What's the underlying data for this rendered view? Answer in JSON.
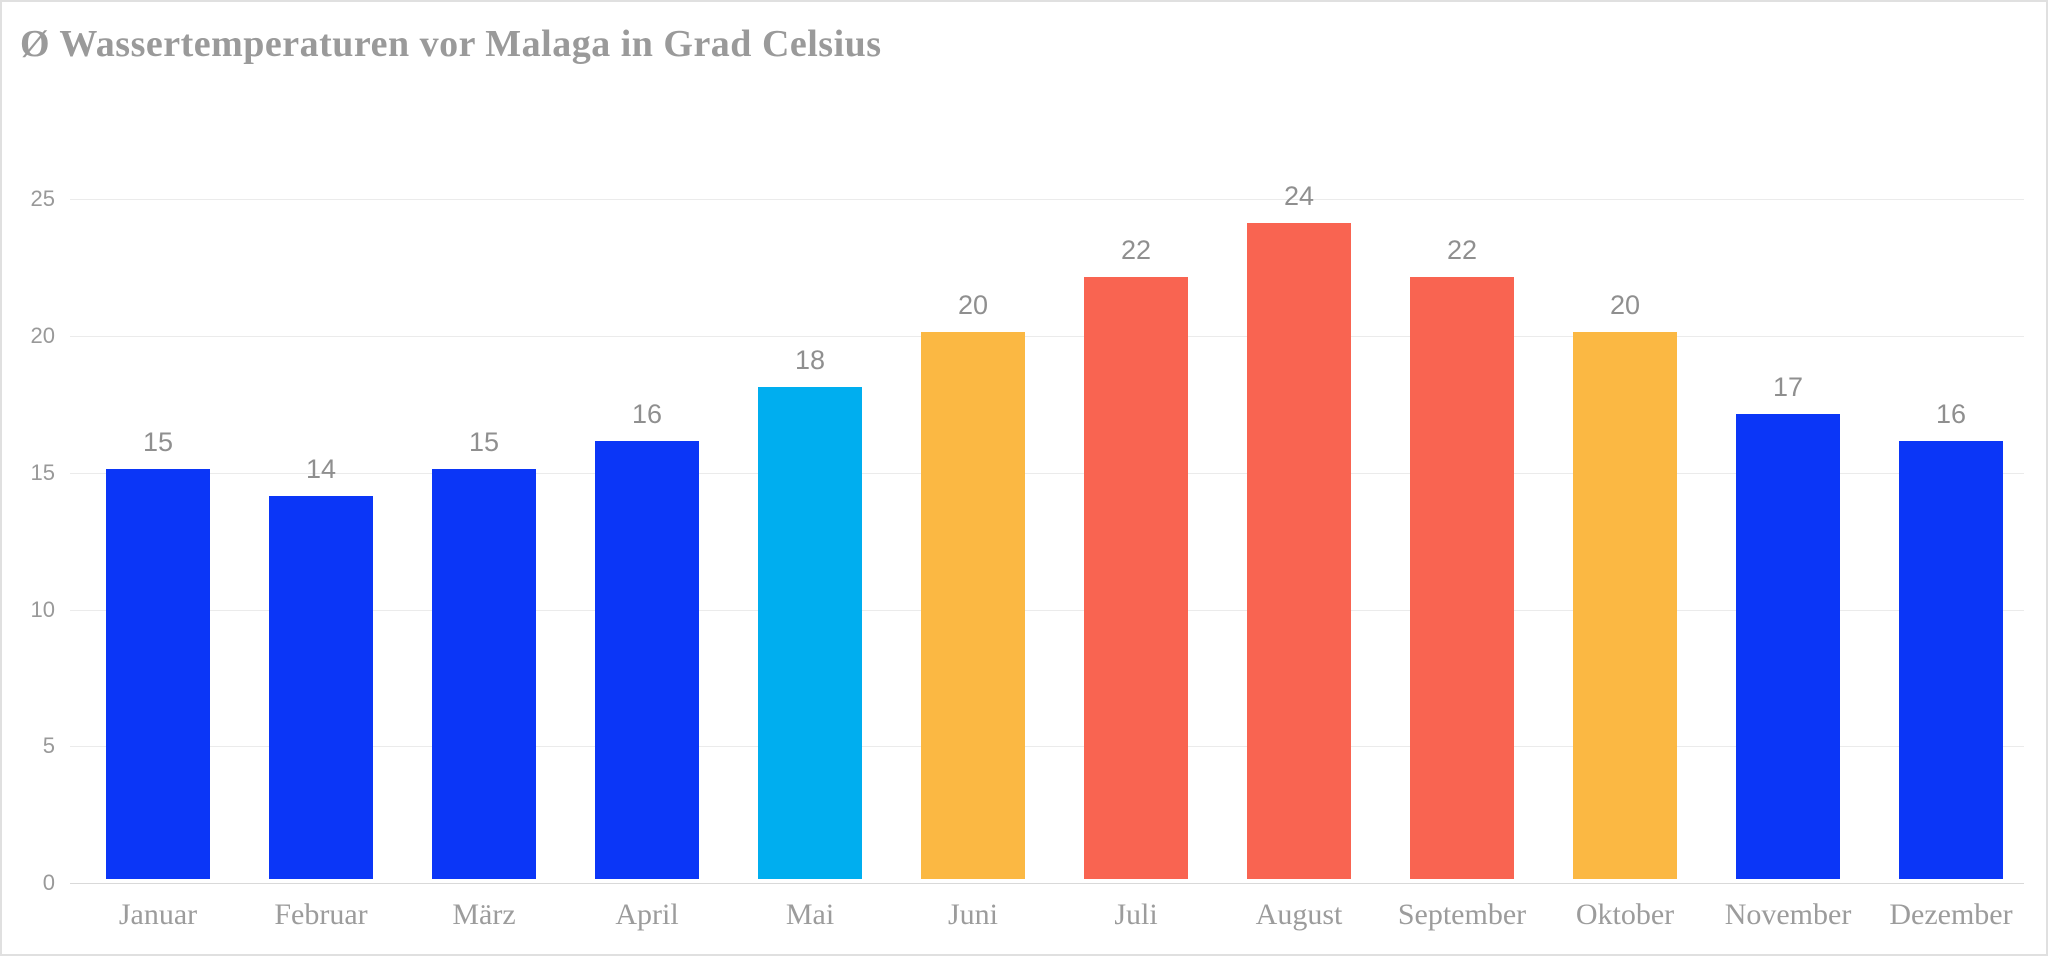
{
  "title": "Ø Wassertemperaturen vor Malaga in Grad Celsius",
  "chart_data": {
    "type": "bar",
    "title": "Ø Wassertemperaturen vor Malaga in Grad Celsius",
    "categories": [
      "Januar",
      "Februar",
      "März",
      "April",
      "Mai",
      "Juni",
      "Juli",
      "August",
      "September",
      "Oktober",
      "November",
      "Dezember"
    ],
    "values": [
      15,
      14,
      15,
      16,
      18,
      20,
      22,
      24,
      22,
      20,
      17,
      16
    ],
    "bar_color_keys": [
      "blue",
      "blue",
      "blue",
      "blue",
      "cyan",
      "orange",
      "red",
      "red",
      "red",
      "orange",
      "blue",
      "blue"
    ],
    "xlabel": "",
    "ylabel": "",
    "ylim": [
      0,
      25
    ],
    "yticks": [
      0,
      5,
      10,
      15,
      20,
      25
    ],
    "grid": true,
    "legend": "none",
    "value_labels_shown": true
  },
  "colors": {
    "blue": "#0b36f7",
    "cyan": "#00aeef",
    "orange": "#fbb843",
    "red": "#f96451",
    "gridline": "#ebebeb",
    "baseline": "#d9d9d9",
    "title_text": "#9a9a9a",
    "tick_text": "#999999",
    "value_text": "#8f8f8f",
    "month_text": "#9c9c9c",
    "card_border": "#e0e0e0",
    "background": "#ffffff"
  }
}
